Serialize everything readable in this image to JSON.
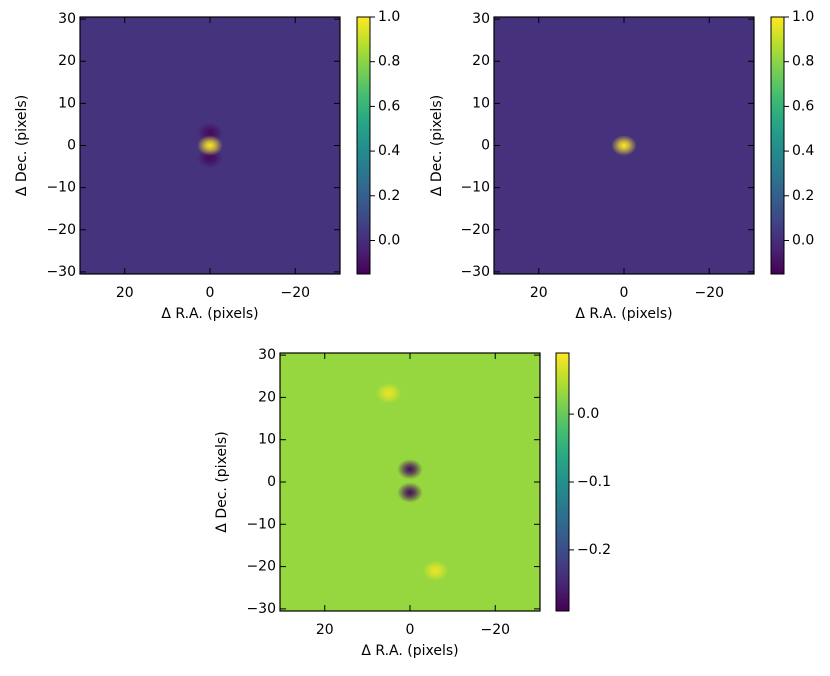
{
  "chart_data": [
    {
      "type": "image",
      "xlabel": "Δ R.A. (pixels)",
      "ylabel": "Δ Dec. (pixels)",
      "xlim": [
        30.5,
        -30.5
      ],
      "ylim": [
        -30.5,
        30.5
      ],
      "xticks": [
        20,
        0,
        {
          "value": -20,
          "label": "−20"
        }
      ],
      "yticks": [
        {
          "value": -30,
          "label": "−30"
        },
        {
          "value": -20,
          "label": "−20"
        },
        {
          "value": -10,
          "label": "−10"
        },
        0,
        10,
        20,
        30
      ],
      "colormap": "viridis",
      "clim": [
        -0.15,
        1.0
      ],
      "cticks": [
        {
          "value": 0,
          "label": "0.0"
        },
        {
          "value": 0.2,
          "label": "0.2"
        },
        {
          "value": 0.4,
          "label": "0.4"
        },
        {
          "value": 0.6,
          "label": "0.6"
        },
        {
          "value": 0.8,
          "label": "0.8"
        },
        {
          "value": 1.0,
          "label": "1.0"
        }
      ],
      "background": 0.02,
      "sources": [
        {
          "x": 0,
          "y": 3,
          "value": -0.12
        },
        {
          "x": 0,
          "y": -3,
          "value": -0.12
        },
        {
          "x": 0,
          "y": 0,
          "value": 1.0
        }
      ]
    },
    {
      "type": "image",
      "xlabel": "Δ R.A. (pixels)",
      "ylabel": "Δ Dec. (pixels)",
      "xlim": [
        30.5,
        -30.5
      ],
      "ylim": [
        -30.5,
        30.5
      ],
      "xticks": [
        20,
        0,
        {
          "value": -20,
          "label": "−20"
        }
      ],
      "yticks": [
        {
          "value": -30,
          "label": "−30"
        },
        {
          "value": -20,
          "label": "−20"
        },
        {
          "value": -10,
          "label": "−10"
        },
        0,
        10,
        20,
        30
      ],
      "colormap": "viridis",
      "clim": [
        -0.15,
        1.0
      ],
      "cticks": [
        {
          "value": 0,
          "label": "0.0"
        },
        {
          "value": 0.2,
          "label": "0.2"
        },
        {
          "value": 0.4,
          "label": "0.4"
        },
        {
          "value": 0.6,
          "label": "0.6"
        },
        {
          "value": 0.8,
          "label": "0.8"
        },
        {
          "value": 1.0,
          "label": "1.0"
        }
      ],
      "background": 0.01,
      "sources": [
        {
          "x": 0,
          "y": 0,
          "value": 1.0
        }
      ]
    },
    {
      "type": "image",
      "xlabel": "Δ R.A. (pixels)",
      "ylabel": "Δ Dec. (pixels)",
      "xlim": [
        30.5,
        -30.5
      ],
      "ylim": [
        -30.5,
        30.5
      ],
      "xticks": [
        20,
        0,
        {
          "value": -20,
          "label": "−20"
        }
      ],
      "yticks": [
        {
          "value": -30,
          "label": "−30"
        },
        {
          "value": -20,
          "label": "−20"
        },
        {
          "value": -10,
          "label": "−10"
        },
        0,
        10,
        20,
        30
      ],
      "colormap": "viridis",
      "clim": [
        -0.29,
        0.09
      ],
      "cticks": [
        {
          "value": -0.2,
          "label": "−0.2"
        },
        {
          "value": -0.1,
          "label": "−0.1"
        },
        {
          "value": 0,
          "label": "0.0"
        }
      ],
      "background": 0.03,
      "sources": [
        {
          "x": 0,
          "y": 3,
          "value": -0.28
        },
        {
          "x": 0,
          "y": -2.5,
          "value": -0.28
        },
        {
          "x": 5,
          "y": 21,
          "value": 0.08
        },
        {
          "x": -6,
          "y": -21,
          "value": 0.08
        }
      ]
    }
  ]
}
